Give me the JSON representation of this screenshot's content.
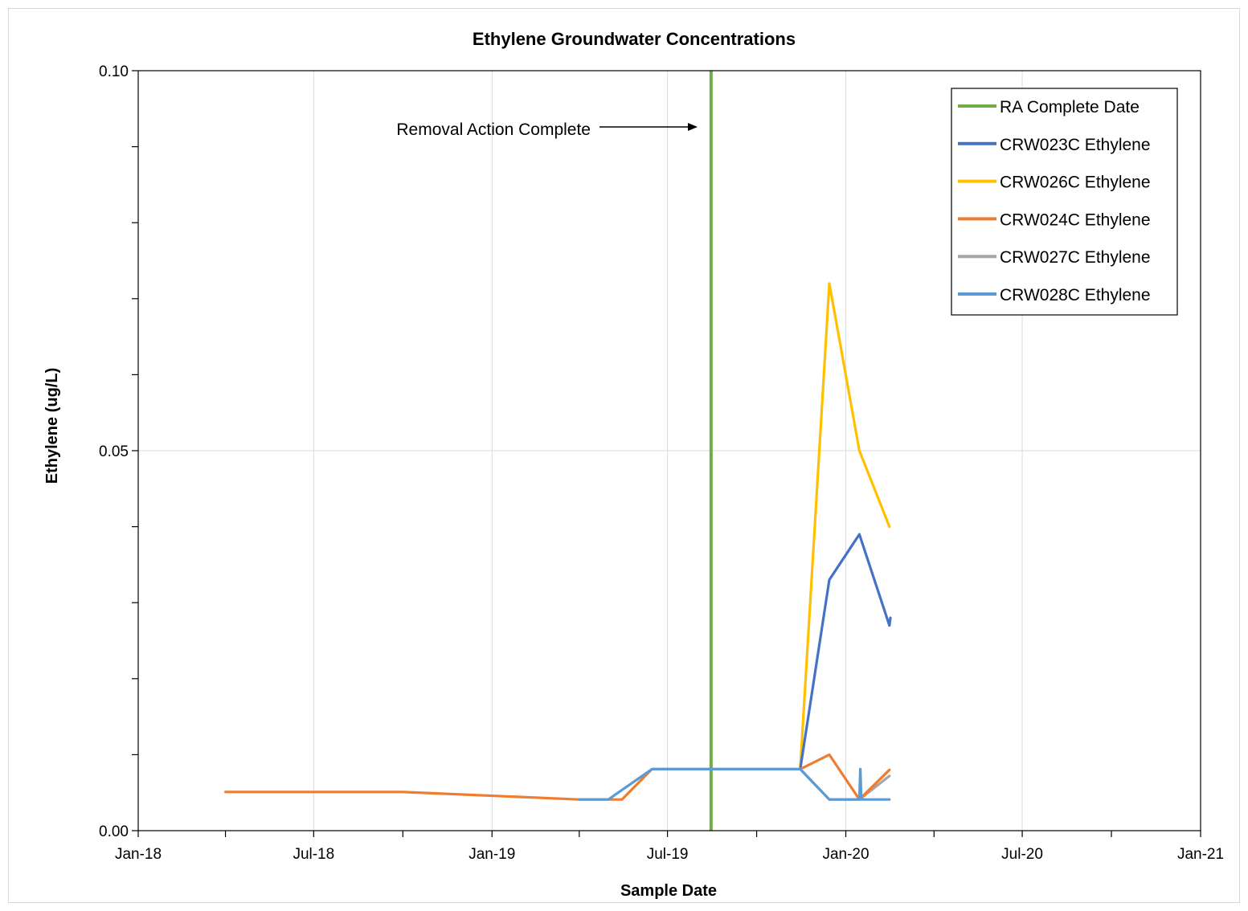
{
  "chart_data": {
    "type": "line",
    "title": "Ethylene Groundwater  Concentrations",
    "xlabel": "Sample Date",
    "ylabel": "Ethylene  (ug/L)",
    "x_axis_type": "date",
    "xlim": [
      "2018-01-01",
      "2021-01-01"
    ],
    "ylim": [
      0,
      0.1
    ],
    "x_tick_labels": [
      {
        "date": "2018-01-01",
        "label": "Jan-18"
      },
      {
        "date": "2018-07-01",
        "label": "Jul-18"
      },
      {
        "date": "2019-01-01",
        "label": "Jan-19"
      },
      {
        "date": "2019-07-01",
        "label": "Jul-19"
      },
      {
        "date": "2020-01-01",
        "label": "Jan-20"
      },
      {
        "date": "2020-07-01",
        "label": "Jul-20"
      },
      {
        "date": "2021-01-01",
        "label": "Jan-21"
      }
    ],
    "x_minor_ticks": [
      "2018-04-01",
      "2018-10-01",
      "2019-04-01",
      "2019-10-01",
      "2020-04-01",
      "2020-10-01"
    ],
    "y_tick_labels": [
      {
        "value": 0,
        "label": "0.00"
      },
      {
        "value": 0.05,
        "label": "0.05"
      },
      {
        "value": 0.1,
        "label": "0.10"
      }
    ],
    "y_minor_ticks": [
      0.01,
      0.02,
      0.03,
      0.04,
      0.06,
      0.07,
      0.08,
      0.09
    ],
    "grid": "vertical at labeled dates, horizontal at 0.05",
    "legend_position": "top-right",
    "annotation": {
      "text": "Removal Action Complete",
      "arrow_to": "2019-08-01",
      "y": 0.092
    },
    "series": [
      {
        "name": "RA Complete Date",
        "color": "#70ad47",
        "kind": "vertical-line",
        "date": "2019-08-15"
      },
      {
        "name": "CRW023C Ethylene",
        "color": "#4472c4",
        "points": [
          [
            "2019-11-15",
            0.0081
          ],
          [
            "2019-12-15",
            0.033
          ],
          [
            "2020-01-15",
            0.039
          ],
          [
            "2020-02-15",
            0.027
          ],
          [
            "2020-02-16",
            0.028
          ]
        ]
      },
      {
        "name": "CRW026C Ethylene",
        "color": "#ffc000",
        "points": [
          [
            "2019-11-15",
            0.0081
          ],
          [
            "2019-12-15",
            0.072
          ],
          [
            "2020-01-15",
            0.05
          ],
          [
            "2020-02-15",
            0.04
          ]
        ]
      },
      {
        "name": "CRW024C Ethylene",
        "color": "#ed7d31",
        "points": [
          [
            "2018-04-01",
            0.0051
          ],
          [
            "2018-10-01",
            0.0051
          ],
          [
            "2019-04-01",
            0.0041
          ],
          [
            "2019-05-15",
            0.0041
          ],
          [
            "2019-06-15",
            0.0081
          ],
          [
            "2019-11-15",
            0.0081
          ],
          [
            "2019-12-15",
            0.01
          ],
          [
            "2020-01-15",
            0.0041
          ],
          [
            "2020-02-15",
            0.008
          ]
        ]
      },
      {
        "name": "CRW027C Ethylene",
        "color": "#a5a5a5",
        "points": [
          [
            "2019-11-15",
            0.0081
          ],
          [
            "2019-12-15",
            0.0041
          ],
          [
            "2020-01-15",
            0.0041
          ],
          [
            "2020-02-15",
            0.0072
          ]
        ]
      },
      {
        "name": "CRW028C Ethylene",
        "color": "#5b9bd5",
        "points": [
          [
            "2019-04-01",
            0.0041
          ],
          [
            "2019-05-01",
            0.0041
          ],
          [
            "2019-06-15",
            0.0081
          ],
          [
            "2019-11-15",
            0.0081
          ],
          [
            "2019-12-15",
            0.0041
          ],
          [
            "2020-01-15",
            0.0041
          ],
          [
            "2020-01-16",
            0.0081
          ],
          [
            "2020-01-17",
            0.0041
          ],
          [
            "2020-02-15",
            0.0041
          ]
        ]
      }
    ]
  }
}
